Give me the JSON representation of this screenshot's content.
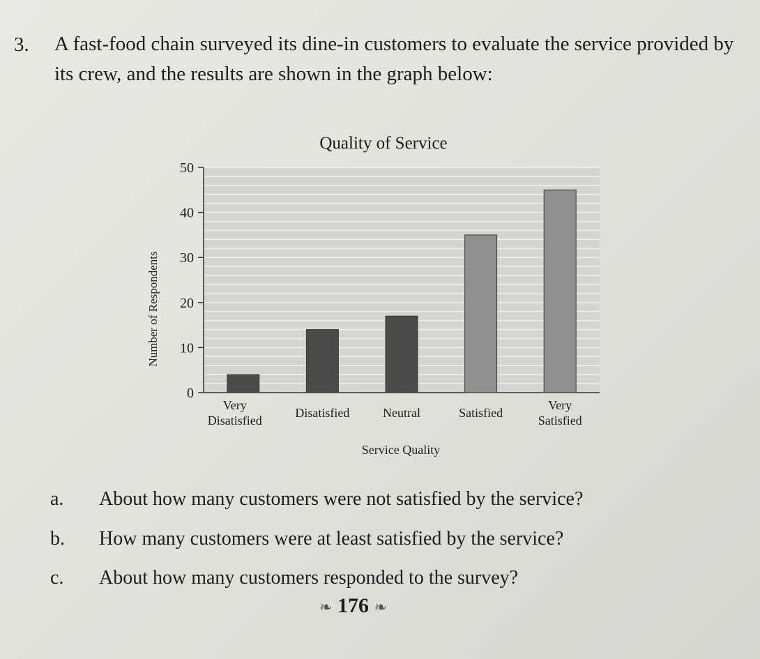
{
  "question": {
    "number": "3.",
    "text": "A fast-food chain surveyed its dine-in customers to evaluate the service provided by its crew, and the results are shown in the graph below:"
  },
  "chart_data": {
    "type": "bar",
    "title": "Quality of Service",
    "xlabel": "Service Quality",
    "ylabel": "Number of Respondents",
    "categories": [
      [
        "Very",
        "Disatisfied"
      ],
      [
        "Disatisfied"
      ],
      [
        "Neutral"
      ],
      [
        "Satisfied"
      ],
      [
        "Very",
        "Satisfied"
      ]
    ],
    "values": [
      4,
      14,
      17,
      35,
      45
    ],
    "ylim": [
      0,
      50
    ],
    "yticks": [
      0,
      10,
      20,
      30,
      40,
      50
    ],
    "grid": "horizontal lines every 2 units",
    "colors": {
      "dark_bars": "#4a4a4a",
      "light_bars": "#8f8f8f",
      "plot_bg": "#d4d4d0",
      "grid": "#efefec"
    }
  },
  "subquestions": [
    {
      "label": "a.",
      "text": "About how many customers were not satisfied by the service?"
    },
    {
      "label": "b.",
      "text": "How many customers were at least satisfied by the service?"
    },
    {
      "label": "c.",
      "text": "About how many customers responded to the survey?"
    }
  ],
  "page_number": "176"
}
